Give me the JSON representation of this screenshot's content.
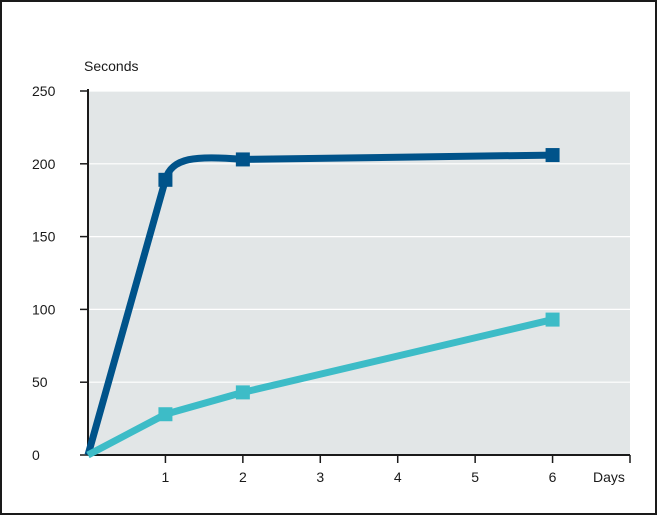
{
  "chart_data": {
    "type": "line",
    "title": "",
    "ylabel": "Seconds",
    "xlabel": "Days",
    "xlim": [
      0,
      7
    ],
    "ylim": [
      0,
      250
    ],
    "x_ticks": [
      1,
      2,
      3,
      4,
      5,
      6
    ],
    "y_ticks": [
      0,
      50,
      100,
      150,
      200,
      250
    ],
    "grid": "horizontal",
    "legend": "none",
    "plot_background": "#e2e6e7",
    "series": [
      {
        "color": "#00538a",
        "marker": "square",
        "x": [
          0,
          1,
          2,
          6
        ],
        "y": [
          0,
          189,
          203,
          206
        ]
      },
      {
        "color": "#3dbcc7",
        "marker": "square",
        "x": [
          0,
          1,
          2,
          6
        ],
        "y": [
          0,
          28,
          43,
          93
        ]
      }
    ]
  }
}
